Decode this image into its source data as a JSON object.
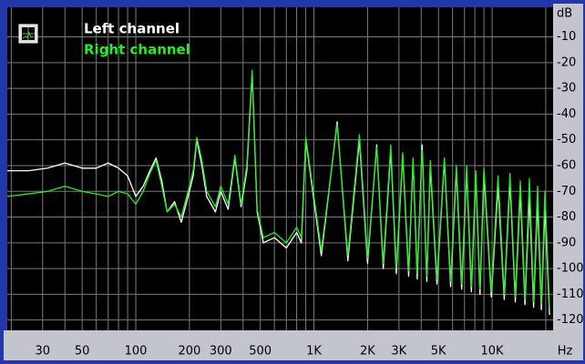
{
  "chart_data": {
    "type": "line",
    "ylabel": "dB",
    "xlabel": "Hz",
    "log_x": true,
    "grid": true,
    "legend": "upper left",
    "xlim": [
      19,
      22000
    ],
    "ylim": [
      -124,
      1.5
    ],
    "xticks": [
      30,
      50,
      100,
      200,
      300,
      500,
      {
        "value": 1000,
        "label": "1K"
      },
      {
        "value": 2000,
        "label": "2K"
      },
      {
        "value": 3000,
        "label": "3K"
      },
      {
        "value": 5000,
        "label": "5K"
      },
      {
        "value": 10000,
        "label": "10K"
      }
    ],
    "xgrid": [
      20,
      30,
      40,
      50,
      60,
      70,
      80,
      90,
      100,
      200,
      300,
      400,
      500,
      600,
      700,
      800,
      900,
      1000,
      2000,
      3000,
      4000,
      5000,
      6000,
      7000,
      8000,
      9000,
      10000,
      20000
    ],
    "yticks": [
      -10,
      -20,
      -30,
      -40,
      -50,
      -60,
      -70,
      -80,
      -90,
      -100,
      -110,
      -120
    ],
    "x": [
      19,
      25,
      32,
      40,
      50,
      60,
      70,
      80,
      90,
      100,
      110,
      120,
      130,
      140,
      150,
      165,
      180,
      200,
      210,
      220,
      235,
      250,
      280,
      300,
      330,
      360,
      390,
      420,
      450,
      480,
      520,
      600,
      700,
      800,
      850,
      900,
      1100,
      1350,
      1550,
      1800,
      2000,
      2250,
      2450,
      2700,
      2900,
      3150,
      3400,
      3600,
      3800,
      4050,
      4300,
      4500,
      4900,
      5400,
      5850,
      6300,
      6750,
      7200,
      7650,
      8100,
      8550,
      9000,
      9900,
      10800,
      11700,
      12600,
      13500,
      14400,
      15300,
      16200,
      17100,
      18000,
      18900,
      19800,
      21000
    ],
    "series": [
      {
        "name": "Left channel",
        "color": "#ffffff",
        "values": [
          -62,
          -62,
          -61,
          -59,
          -61,
          -61,
          -59,
          -61,
          -64,
          -72,
          -68,
          -62,
          -57,
          -66,
          -78,
          -74,
          -82,
          -70,
          -64,
          -50,
          -60,
          -72,
          -78,
          -70,
          -77,
          -57,
          -76,
          -62,
          -24,
          -78,
          -90,
          -88,
          -92,
          -86,
          -90,
          -50,
          -95,
          -43,
          -97,
          -50,
          -98,
          -52,
          -100,
          -54,
          -102,
          -56,
          -103,
          -58,
          -104,
          -52,
          -105,
          -60,
          -106,
          -58,
          -107,
          -62,
          -108,
          -62,
          -109,
          -64,
          -110,
          -63,
          -111,
          -68,
          -112,
          -66,
          -113,
          -70,
          -114,
          -72,
          -115,
          -74,
          -116,
          -76,
          -118
        ]
      },
      {
        "name": "Right channel",
        "color": "#22ee22",
        "values": [
          -72,
          -71,
          -70,
          -68,
          -70,
          -71,
          -72,
          -70,
          -71,
          -75,
          -70,
          -63,
          -58,
          -68,
          -78,
          -75,
          -80,
          -68,
          -62,
          -49,
          -58,
          -70,
          -76,
          -68,
          -75,
          -56,
          -75,
          -60,
          -23,
          -77,
          -88,
          -86,
          -90,
          -84,
          -88,
          -49,
          -93,
          -44,
          -95,
          -48,
          -96,
          -53,
          -98,
          -52,
          -100,
          -55,
          -101,
          -57,
          -102,
          -54,
          -103,
          -58,
          -104,
          -57,
          -105,
          -60,
          -106,
          -60,
          -107,
          -62,
          -108,
          -61,
          -109,
          -64,
          -110,
          -63,
          -111,
          -66,
          -112,
          -65,
          -113,
          -68,
          -114,
          -70,
          -116
        ]
      }
    ]
  }
}
